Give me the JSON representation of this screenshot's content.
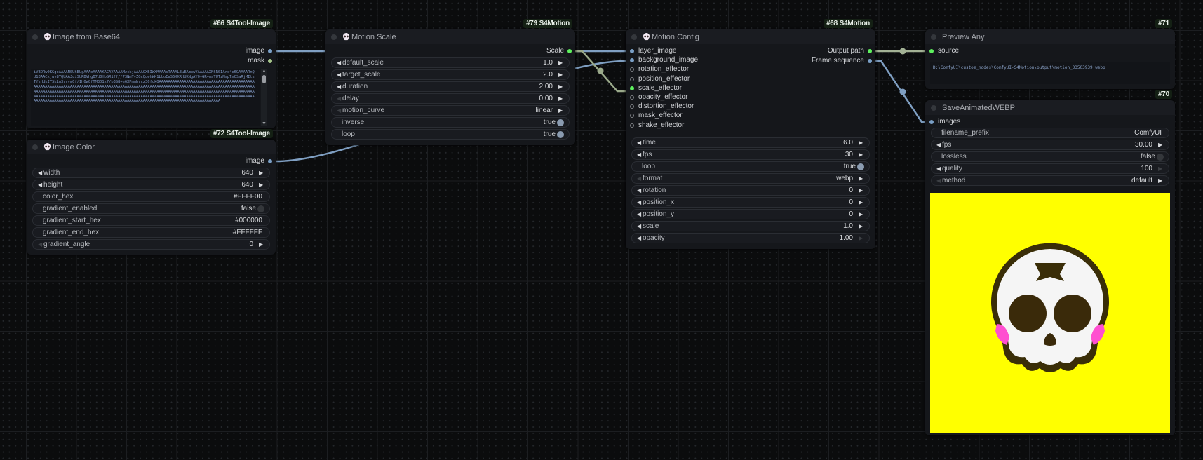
{
  "nodes": [
    {
      "id": "66",
      "badge": "#66 S4Tool-Image",
      "title": "Image from Base64",
      "skull": true,
      "outputs": [
        {
          "name": "image",
          "color": "#7a9fc6"
        },
        {
          "name": "mask",
          "color": "#a5c48a"
        }
      ],
      "textarea": "iVBORw0KGgoAAAANSUhEUgAAAoAAAAKACAYAAAAMzckjAAAACXBIWXMAAAsTAAALEwEAmpwYAAAAAXNSR0IArs4c6QAAAARnQU1BAACxjwv8YQUAAJuiSURBVHgB7d0HoGR1ff//73NmTvZGcQuwhWK1LUoEaS6KXRHUKNgAY0vGR+maTUTzMspTxCSaRjMItsTYsHdkIYSkLu3vvvm0f/1H0w0fTM3D1z7/b3S8+e6XPmmbvcz36fckQAAAAAAAAAAAAAAAAAAAAAAAAAAAAAAAAAAAAAAAAAAAAAAAAAAAAAAAAAAAAAAAAAAAAAAAAAAAAAAAAAAAAAAAAAAAAAAAAAAAAAAAAAAAAAAAAAAAAAAAAAAAAAAAAAAAAAAAAAAAAAAAAAAAAAAAAAAAAAAAAAAAAAAAAAAAAAAAAAAAAAAAAAAAAAAAAAAAAAAAAAAAAAAAAAAAAAAAAAAAAAAAAAAAAAAAAAAAAAAAAAAAAAAAAAAAAAAAAAAAAAAAAAAAAAAAAAAAAAAAAAAAAAAAAAAAAAAAAAAAAAAAAAAAAAAAAAAAAAAAAAAAAAAAAAAAAAAAAAAAAAAAAAAAAAAAAAAAAAAAAAAAAAAAAAAAAAAAAAAAAAAAAAAAAAAAAAAAAAAAAAAAAAAAAAAAAAAA"
    },
    {
      "id": "72",
      "badge": "#72 S4Tool-Image",
      "title": "Image Color",
      "skull": true,
      "outputs": [
        {
          "name": "image",
          "color": "#7a9fc6"
        }
      ],
      "widgets": [
        {
          "label": "width",
          "value": "640",
          "type": "number"
        },
        {
          "label": "height",
          "value": "640",
          "type": "number"
        },
        {
          "label": "color_hex",
          "value": "#FFFF00",
          "type": "text"
        },
        {
          "label": "gradient_enabled",
          "value": "false",
          "type": "toggle",
          "on": false
        },
        {
          "label": "gradient_start_hex",
          "value": "#000000",
          "type": "text"
        },
        {
          "label": "gradient_end_hex",
          "value": "#FFFFFF",
          "type": "text"
        },
        {
          "label": "gradient_angle",
          "value": "0",
          "type": "number",
          "left_disabled": true
        }
      ]
    },
    {
      "id": "79",
      "badge": "#79 S4Motion",
      "title": "Motion Scale",
      "skull": true,
      "outputs": [
        {
          "name": "Scale",
          "color": "#5ef05e"
        }
      ],
      "widgets": [
        {
          "label": "default_scale",
          "value": "1.0",
          "type": "number"
        },
        {
          "label": "target_scale",
          "value": "2.0",
          "type": "number"
        },
        {
          "label": "duration",
          "value": "2.00",
          "type": "number"
        },
        {
          "label": "delay",
          "value": "0.00",
          "type": "number",
          "left_disabled": true
        },
        {
          "label": "motion_curve",
          "value": "linear",
          "type": "combo",
          "left_disabled": true
        },
        {
          "label": "inverse",
          "value": "true",
          "type": "toggle",
          "on": true
        },
        {
          "label": "loop",
          "value": "true",
          "type": "toggle",
          "on": true
        }
      ]
    },
    {
      "id": "68",
      "badge": "#68 S4Motion",
      "title": "Motion Config",
      "skull": true,
      "inputs": [
        {
          "name": "layer_image",
          "color": "#7a9fc6",
          "connected": true
        },
        {
          "name": "background_image",
          "color": "#7a9fc6",
          "connected": true
        },
        {
          "name": "rotation_effector",
          "connected": false
        },
        {
          "name": "position_effector",
          "connected": false
        },
        {
          "name": "scale_effector",
          "color": "#5ef05e",
          "connected": true
        },
        {
          "name": "opacity_effector",
          "connected": false
        },
        {
          "name": "distortion_effector",
          "connected": false
        },
        {
          "name": "mask_effector",
          "connected": false
        },
        {
          "name": "shake_effector",
          "connected": false
        }
      ],
      "outputs": [
        {
          "name": "Output path",
          "color": "#5ef05e"
        },
        {
          "name": "Frame sequence",
          "color": "#7a9fc6"
        }
      ],
      "widgets": [
        {
          "label": "time",
          "value": "6.0",
          "type": "number"
        },
        {
          "label": "fps",
          "value": "30",
          "type": "number"
        },
        {
          "label": "loop",
          "value": "true",
          "type": "toggle",
          "on": true
        },
        {
          "label": "format",
          "value": "webp",
          "type": "combo",
          "left_disabled": true
        },
        {
          "label": "rotation",
          "value": "0",
          "type": "number"
        },
        {
          "label": "position_x",
          "value": "0",
          "type": "number"
        },
        {
          "label": "position_y",
          "value": "0",
          "type": "number"
        },
        {
          "label": "scale",
          "value": "1.0",
          "type": "number"
        },
        {
          "label": "opacity",
          "value": "1.00",
          "type": "number",
          "right_disabled": true
        }
      ]
    },
    {
      "id": "71",
      "badge": "#71",
      "title": "Preview Any",
      "skull": false,
      "inputs": [
        {
          "name": "source",
          "color": "#5ef05e",
          "connected": true
        }
      ],
      "textarea": "D:\\ComfyUI\\custom_nodes\\ComfyUI-S4Motion\\output\\motion_33503939.webp"
    },
    {
      "id": "70",
      "badge": "#70",
      "title": "SaveAnimatedWEBP",
      "skull": false,
      "inputs": [
        {
          "name": "images",
          "color": "#7a9fc6",
          "connected": true
        }
      ],
      "widgets": [
        {
          "label": "filename_prefix",
          "value": "ComfyUI",
          "type": "text"
        },
        {
          "label": "fps",
          "value": "30.00",
          "type": "number"
        },
        {
          "label": "lossless",
          "value": "false",
          "type": "toggle",
          "on": false
        },
        {
          "label": "quality",
          "value": "100",
          "type": "number",
          "right_disabled": true
        },
        {
          "label": "method",
          "value": "default",
          "type": "combo",
          "left_disabled": true
        }
      ],
      "preview": {
        "background": "#FFFF00",
        "content": "skull-image"
      }
    }
  ],
  "colors": {
    "image_link": "#7f9fc2",
    "effector_link": "#9aa98a",
    "path_link": "#a3b295"
  }
}
